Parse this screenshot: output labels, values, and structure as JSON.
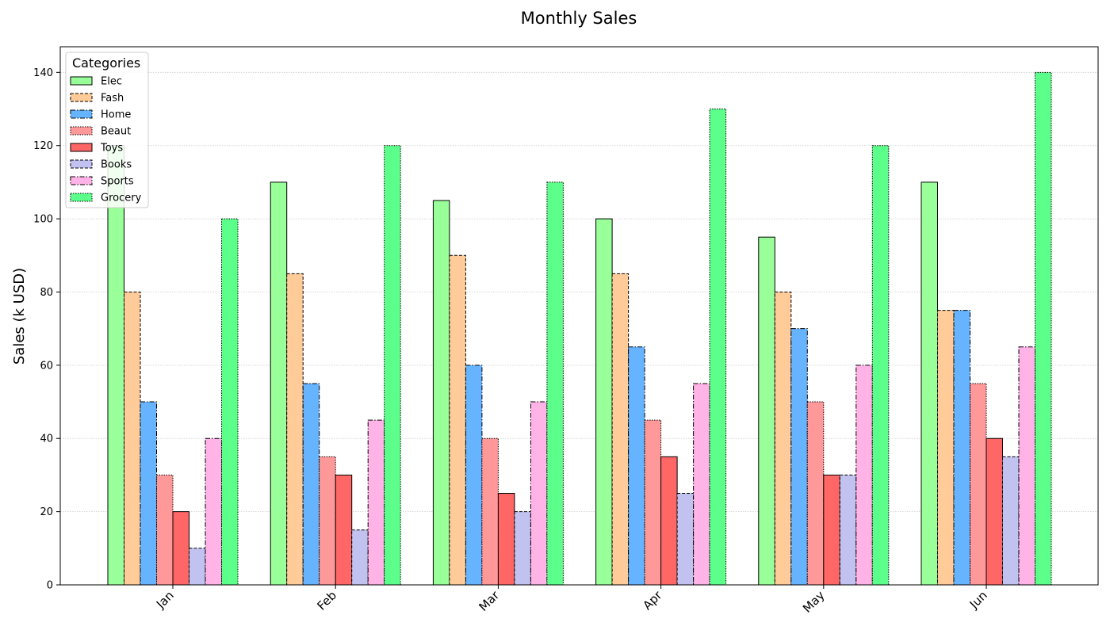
{
  "chart_data": {
    "type": "bar",
    "title": "Monthly Sales",
    "xlabel": "",
    "ylabel": "Sales (k USD)",
    "ylim": [
      0,
      147
    ],
    "yticks": [
      0,
      20,
      40,
      60,
      80,
      100,
      120,
      140
    ],
    "grid": "horizontal dotted",
    "legend": {
      "title": "Categories",
      "placement": "top-left"
    },
    "categories": [
      "Jan",
      "Feb",
      "Mar",
      "Apr",
      "May",
      "Jun"
    ],
    "series": [
      {
        "name": "Elec",
        "color": "#99ff99",
        "border": "solid",
        "values": [
          120,
          110,
          105,
          100,
          95,
          110
        ]
      },
      {
        "name": "Fash",
        "color": "#ffcc99",
        "border": "dashed",
        "values": [
          80,
          85,
          90,
          85,
          80,
          75
        ]
      },
      {
        "name": "Home",
        "color": "#66b3ff",
        "border": "dashdot",
        "values": [
          50,
          55,
          60,
          65,
          70,
          75
        ]
      },
      {
        "name": "Beaut",
        "color": "#ff9999",
        "border": "dotted",
        "values": [
          30,
          35,
          40,
          45,
          50,
          55
        ]
      },
      {
        "name": "Toys",
        "color": "#ff6666",
        "border": "solid",
        "values": [
          20,
          30,
          25,
          35,
          30,
          40
        ]
      },
      {
        "name": "Books",
        "color": "#c2c2f0",
        "border": "dashed",
        "values": [
          10,
          15,
          20,
          25,
          30,
          35
        ]
      },
      {
        "name": "Sports",
        "color": "#ffb3e6",
        "border": "dashdot",
        "values": [
          40,
          45,
          50,
          55,
          60,
          65
        ]
      },
      {
        "name": "Grocery",
        "color": "#5cff8a",
        "border": "dotted",
        "values": [
          100,
          120,
          110,
          130,
          120,
          140
        ]
      }
    ]
  }
}
